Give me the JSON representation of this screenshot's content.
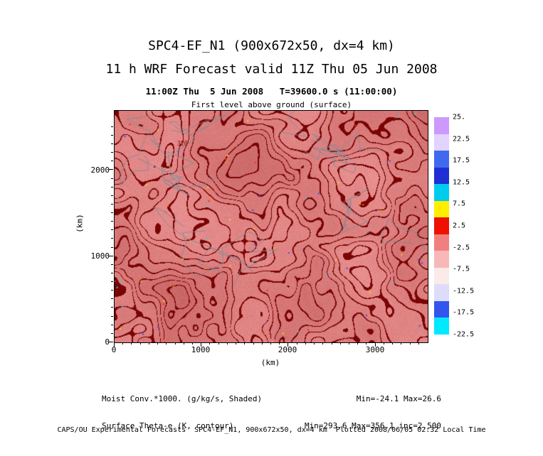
{
  "titles": {
    "line1": "SPC4-EF_N1 (900x672x50, dx=4 km)",
    "line2": "11 h WRF Forecast valid 11Z Thu 05 Jun 2008",
    "time_line": "11:00Z Thu  5 Jun 2008   T=39600.0 s (11:00:00)",
    "level_line": "First level above ground (surface)"
  },
  "chart_data": {
    "type": "heatmap",
    "title": "SPC4-EF_N1 (900x672x50, dx=4 km) 11 h WRF Forecast valid 11Z Thu 05 Jun 2008",
    "level": "First level above ground (surface)",
    "valid_time": "11:00Z Thu 5 Jun 2008",
    "forecast_time": "T=39600.0 s (11:00:00)",
    "shaded_field": {
      "name": "Moist Conv.*1000.",
      "units": "g/kg/s",
      "min": -24.1,
      "max": 26.6
    },
    "contour_field": {
      "name": "Surface Theta-e",
      "units": "K",
      "min": 293.6,
      "max": 356.1,
      "inc": 2.5
    },
    "xlabel": "(km)",
    "ylabel": "(km)",
    "x_tick_labels": [
      "0",
      "1000",
      "2000",
      "3000"
    ],
    "y_tick_labels": [
      "0",
      "1000",
      "2000"
    ],
    "x_range_km": [
      0,
      3600
    ],
    "y_range_km": [
      0,
      2688
    ],
    "grid": false,
    "contour_label": "320",
    "colorbar": {
      "position": "right",
      "tick_labels": [
        "25.",
        "22.5",
        "17.5",
        "12.5",
        "7.5",
        "2.5",
        "-2.5",
        "-7.5",
        "-12.5",
        "-17.5",
        "-22.5"
      ],
      "colors": [
        "#cc99ff",
        "#e2d4ff",
        "#4169ee",
        "#1f2fd4",
        "#00ccee",
        "#ffee00",
        "#ee1100",
        "#f08080",
        "#f8b8b8",
        "#fbeaea",
        "#ddddfb",
        "#3355ee",
        "#00eaff"
      ]
    },
    "map_colors": {
      "base_light": "#f6a2a2",
      "base_dark": "#c05858",
      "contour": "#7a0404",
      "border_gray": "#7d8c96"
    }
  },
  "annotations": {
    "left_line1": "Moist Conv.*1000. (g/kg/s, Shaded)",
    "left_line2": "Surface Theta-e (K, contour)",
    "right_line1": "Min=-24.1 Max=26.6",
    "right_line2": "Min=293.6 Max=356.1 inc=2.500"
  },
  "footer": {
    "text": "CAPS/OU Experimental Forecasts  SPC4-EF_N1, 900x672x50, dx=4 km  Plotted 2008/06/05 02:32 Local Time"
  }
}
